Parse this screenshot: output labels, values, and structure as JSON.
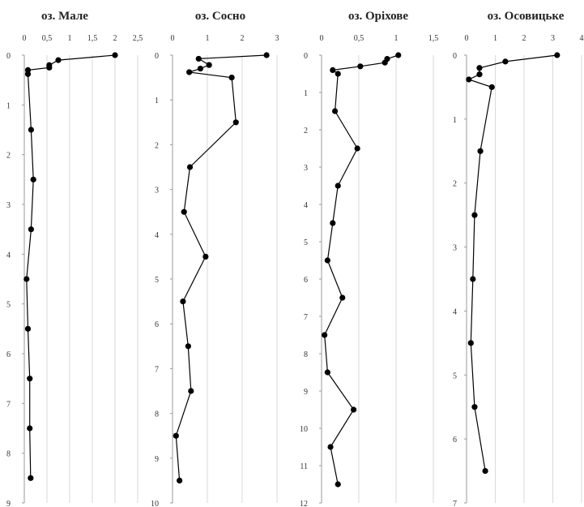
{
  "chart_data": [
    {
      "type": "line",
      "title": "оз. Мале",
      "xlim": [
        0,
        2.5
      ],
      "xticks": [
        "0",
        "0,5",
        "1",
        "1,5",
        "2",
        "2,5"
      ],
      "ylim": [
        0,
        9
      ],
      "yticks": [
        "0",
        "1",
        "2",
        "3",
        "4",
        "5",
        "6",
        "7",
        "8",
        "9"
      ],
      "y_inverted": true,
      "x_axis_position": "top",
      "grid": "vertical",
      "points": [
        {
          "x": 2.0,
          "y": 0.0
        },
        {
          "x": 0.75,
          "y": 0.1
        },
        {
          "x": 0.55,
          "y": 0.2
        },
        {
          "x": 0.55,
          "y": 0.25
        },
        {
          "x": 0.08,
          "y": 0.3
        },
        {
          "x": 0.08,
          "y": 0.38
        },
        {
          "x": 0.15,
          "y": 1.5
        },
        {
          "x": 0.2,
          "y": 2.5
        },
        {
          "x": 0.15,
          "y": 3.5
        },
        {
          "x": 0.05,
          "y": 4.5
        },
        {
          "x": 0.08,
          "y": 5.5
        },
        {
          "x": 0.12,
          "y": 6.5
        },
        {
          "x": 0.12,
          "y": 7.5
        },
        {
          "x": 0.14,
          "y": 8.5
        }
      ]
    },
    {
      "type": "line",
      "title": "оз. Сосно",
      "xlim": [
        0,
        3
      ],
      "xticks": [
        "0",
        "1",
        "2",
        "3"
      ],
      "ylim": [
        0,
        10
      ],
      "yticks": [
        "0",
        "1",
        "2",
        "3",
        "4",
        "5",
        "6",
        "7",
        "8",
        "9",
        "10"
      ],
      "y_inverted": true,
      "x_axis_position": "top",
      "grid": "vertical",
      "points": [
        {
          "x": 2.7,
          "y": 0.0
        },
        {
          "x": 0.75,
          "y": 0.08
        },
        {
          "x": 1.05,
          "y": 0.22
        },
        {
          "x": 0.8,
          "y": 0.3
        },
        {
          "x": 0.48,
          "y": 0.38
        },
        {
          "x": 1.7,
          "y": 0.5
        },
        {
          "x": 1.82,
          "y": 1.5
        },
        {
          "x": 0.5,
          "y": 2.5
        },
        {
          "x": 0.33,
          "y": 3.5
        },
        {
          "x": 0.95,
          "y": 4.5
        },
        {
          "x": 0.3,
          "y": 5.5
        },
        {
          "x": 0.45,
          "y": 6.5
        },
        {
          "x": 0.53,
          "y": 7.5
        },
        {
          "x": 0.1,
          "y": 8.5
        },
        {
          "x": 0.2,
          "y": 9.5
        }
      ]
    },
    {
      "type": "line",
      "title": "оз. Оріхове",
      "xlim": [
        0,
        1.5
      ],
      "xticks": [
        "0",
        "0,5",
        "1",
        "1,5"
      ],
      "ylim": [
        0,
        12
      ],
      "yticks": [
        "0",
        "1",
        "2",
        "3",
        "4",
        "5",
        "6",
        "7",
        "8",
        "9",
        "10",
        "11",
        "12"
      ],
      "y_inverted": true,
      "x_axis_position": "top",
      "grid": "vertical",
      "points": [
        {
          "x": 1.03,
          "y": 0.0
        },
        {
          "x": 0.88,
          "y": 0.1
        },
        {
          "x": 0.85,
          "y": 0.2
        },
        {
          "x": 0.52,
          "y": 0.3
        },
        {
          "x": 0.15,
          "y": 0.4
        },
        {
          "x": 0.22,
          "y": 0.5
        },
        {
          "x": 0.18,
          "y": 1.5
        },
        {
          "x": 0.48,
          "y": 2.5
        },
        {
          "x": 0.22,
          "y": 3.5
        },
        {
          "x": 0.15,
          "y": 4.5
        },
        {
          "x": 0.08,
          "y": 5.5
        },
        {
          "x": 0.28,
          "y": 6.5
        },
        {
          "x": 0.04,
          "y": 7.5
        },
        {
          "x": 0.08,
          "y": 8.5
        },
        {
          "x": 0.43,
          "y": 9.5
        },
        {
          "x": 0.12,
          "y": 10.5
        },
        {
          "x": 0.22,
          "y": 11.5
        }
      ]
    },
    {
      "type": "line",
      "title": "оз. Осовицьке",
      "xlim": [
        0,
        4
      ],
      "xticks": [
        "0",
        "1",
        "2",
        "3",
        "4"
      ],
      "ylim": [
        0,
        7
      ],
      "yticks": [
        "0",
        "1",
        "2",
        "3",
        "4",
        "5",
        "6",
        "7"
      ],
      "y_inverted": true,
      "x_axis_position": "top",
      "grid": "vertical",
      "points": [
        {
          "x": 3.15,
          "y": 0.0
        },
        {
          "x": 1.35,
          "y": 0.1
        },
        {
          "x": 0.45,
          "y": 0.2
        },
        {
          "x": 0.45,
          "y": 0.3
        },
        {
          "x": 0.08,
          "y": 0.38
        },
        {
          "x": 0.88,
          "y": 0.5
        },
        {
          "x": 0.48,
          "y": 1.5
        },
        {
          "x": 0.28,
          "y": 2.5
        },
        {
          "x": 0.22,
          "y": 3.5
        },
        {
          "x": 0.15,
          "y": 4.5
        },
        {
          "x": 0.28,
          "y": 5.5
        },
        {
          "x": 0.65,
          "y": 6.5
        }
      ]
    }
  ]
}
